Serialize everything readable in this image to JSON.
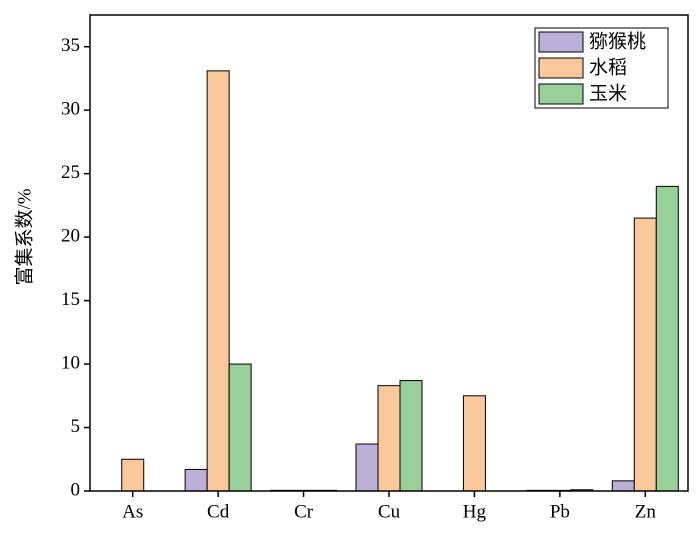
{
  "chart_data": {
    "type": "bar",
    "ylabel": "富集系数/%",
    "categories": [
      "As",
      "Cd",
      "Cr",
      "Cu",
      "Hg",
      "Pb",
      "Zn"
    ],
    "series": [
      {
        "name": "猕猴桃",
        "color": "#bbb0d8",
        "values": [
          0,
          1.7,
          0.05,
          3.7,
          0,
          0.05,
          0.8
        ]
      },
      {
        "name": "水稻",
        "color": "#f9c99b",
        "values": [
          2.5,
          33.1,
          0.05,
          8.3,
          7.5,
          0.05,
          21.5
        ]
      },
      {
        "name": "玉米",
        "color": "#99cf98",
        "values": [
          0,
          10.0,
          0.05,
          8.7,
          0,
          0.1,
          24.0
        ]
      }
    ],
    "ylim": [
      0,
      37.5
    ],
    "yticks": [
      0,
      5,
      10,
      15,
      20,
      25,
      30,
      35
    ],
    "grid": false,
    "legend": "upper right"
  }
}
